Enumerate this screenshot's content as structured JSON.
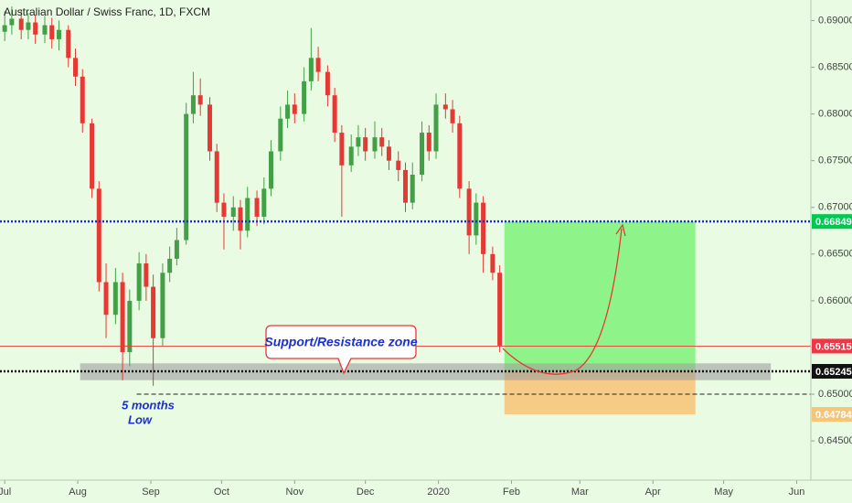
{
  "chart_data": {
    "type": "candlestick",
    "title": "Australian Dollar / Swiss Franc, 1D, FXCM",
    "up_color": "#43a047",
    "down_color": "#e53935",
    "background": "#e9fbe3",
    "xlim": [
      -2,
      342
    ],
    "ylim": [
      0.6408,
      0.6922
    ],
    "xticks": [
      {
        "value": 0,
        "label": "Jul"
      },
      {
        "value": 31,
        "label": "Aug"
      },
      {
        "value": 62,
        "label": "Sep"
      },
      {
        "value": 92,
        "label": "Oct"
      },
      {
        "value": 123,
        "label": "Nov"
      },
      {
        "value": 153,
        "label": "Dec"
      },
      {
        "value": 184,
        "label": "2020"
      },
      {
        "value": 215,
        "label": "Feb"
      },
      {
        "value": 244,
        "label": "Mar"
      },
      {
        "value": 275,
        "label": "Apr"
      },
      {
        "value": 305,
        "label": "May"
      },
      {
        "value": 336,
        "label": "Jun"
      }
    ],
    "yticks": [
      {
        "value": 0.645,
        "label": "0.64500"
      },
      {
        "value": 0.65,
        "label": "0.65000"
      },
      {
        "value": 0.655,
        "label": "0.65500"
      },
      {
        "value": 0.66,
        "label": "0.66000"
      },
      {
        "value": 0.665,
        "label": "0.66500"
      },
      {
        "value": 0.67,
        "label": "0.67000"
      },
      {
        "value": 0.675,
        "label": "0.67500"
      },
      {
        "value": 0.68,
        "label": "0.68000"
      },
      {
        "value": 0.685,
        "label": "0.68500"
      },
      {
        "value": 0.69,
        "label": "0.69000"
      }
    ],
    "x": [
      0,
      3,
      7,
      10,
      13,
      17,
      20,
      23,
      27,
      30,
      33,
      37,
      40,
      43,
      47,
      50,
      53,
      57,
      60,
      63,
      67,
      70,
      73,
      77,
      80,
      83,
      87,
      90,
      93,
      97,
      100,
      103,
      107,
      110,
      113,
      117,
      120,
      123,
      127,
      130,
      133,
      137,
      140,
      143,
      147,
      150,
      153,
      157,
      160,
      163,
      167,
      170,
      173,
      177,
      180,
      183,
      187,
      190,
      193,
      197,
      200,
      203,
      207,
      210
    ],
    "open": [
      0.6888,
      0.6895,
      0.6902,
      0.689,
      0.6898,
      0.6885,
      0.6895,
      0.688,
      0.689,
      0.686,
      0.684,
      0.679,
      0.672,
      0.662,
      0.6585,
      0.662,
      0.6545,
      0.66,
      0.664,
      0.6615,
      0.656,
      0.663,
      0.6645,
      0.6665,
      0.68,
      0.682,
      0.681,
      0.676,
      0.6705,
      0.669,
      0.67,
      0.6675,
      0.671,
      0.669,
      0.672,
      0.676,
      0.6795,
      0.681,
      0.68,
      0.6835,
      0.686,
      0.6845,
      0.682,
      0.678,
      0.6745,
      0.6765,
      0.6775,
      0.676,
      0.6775,
      0.6765,
      0.675,
      0.674,
      0.6705,
      0.6735,
      0.678,
      0.676,
      0.681,
      0.6805,
      0.679,
      0.672,
      0.667,
      0.6705,
      0.665,
      0.663
    ],
    "high": [
      0.691,
      0.6915,
      0.6912,
      0.6908,
      0.6906,
      0.6905,
      0.6903,
      0.69,
      0.6895,
      0.687,
      0.6848,
      0.6795,
      0.6728,
      0.664,
      0.6635,
      0.663,
      0.6612,
      0.6652,
      0.665,
      0.6628,
      0.664,
      0.6658,
      0.6678,
      0.6812,
      0.6845,
      0.6838,
      0.6818,
      0.6768,
      0.6715,
      0.6712,
      0.6708,
      0.6722,
      0.6718,
      0.6732,
      0.6772,
      0.6808,
      0.6825,
      0.6822,
      0.685,
      0.6892,
      0.6872,
      0.6852,
      0.6828,
      0.6788,
      0.6778,
      0.6788,
      0.6785,
      0.6792,
      0.6785,
      0.6772,
      0.676,
      0.6748,
      0.6748,
      0.6792,
      0.6788,
      0.6822,
      0.6822,
      0.6815,
      0.6798,
      0.6728,
      0.6715,
      0.6712,
      0.6658,
      0.6638
    ],
    "low": [
      0.6878,
      0.6885,
      0.688,
      0.688,
      0.6875,
      0.6876,
      0.687,
      0.6868,
      0.685,
      0.683,
      0.678,
      0.671,
      0.661,
      0.656,
      0.6575,
      0.6515,
      0.653,
      0.659,
      0.66,
      0.6509,
      0.6552,
      0.662,
      0.6638,
      0.666,
      0.679,
      0.6798,
      0.675,
      0.6695,
      0.6655,
      0.6675,
      0.6655,
      0.6668,
      0.668,
      0.6682,
      0.6712,
      0.675,
      0.6785,
      0.679,
      0.6792,
      0.6825,
      0.6835,
      0.6808,
      0.677,
      0.669,
      0.6738,
      0.6755,
      0.675,
      0.6752,
      0.6755,
      0.674,
      0.6728,
      0.6695,
      0.6698,
      0.6728,
      0.675,
      0.6752,
      0.6795,
      0.678,
      0.671,
      0.665,
      0.666,
      0.663,
      0.6622,
      0.6545
    ],
    "close": [
      0.6895,
      0.6902,
      0.689,
      0.6898,
      0.6885,
      0.6895,
      0.688,
      0.689,
      0.686,
      0.684,
      0.679,
      0.672,
      0.662,
      0.6585,
      0.662,
      0.6545,
      0.66,
      0.664,
      0.6615,
      0.656,
      0.663,
      0.6645,
      0.6665,
      0.68,
      0.682,
      0.681,
      0.676,
      0.6705,
      0.669,
      0.67,
      0.6675,
      0.671,
      0.669,
      0.672,
      0.676,
      0.6795,
      0.681,
      0.68,
      0.6835,
      0.686,
      0.6845,
      0.682,
      0.678,
      0.6745,
      0.6765,
      0.6775,
      0.676,
      0.6775,
      0.6765,
      0.675,
      0.674,
      0.6705,
      0.6735,
      0.678,
      0.676,
      0.681,
      0.6805,
      0.679,
      0.672,
      0.667,
      0.6705,
      0.665,
      0.663,
      0.6552
    ],
    "levels": [
      {
        "value": 0.66849,
        "line_color": "#1f2fd8",
        "tag_color": "#00c853",
        "style": "dotted"
      },
      {
        "value": 0.65515,
        "line_color": "#e53935",
        "tag_color": "#f23645",
        "style": "solid"
      },
      {
        "value": 0.65245,
        "line_color": "#111111",
        "tag_color": "#111111",
        "style": "dotted"
      }
    ],
    "dashed_level": {
      "value": 0.65,
      "from": 56,
      "color": "#222222"
    },
    "zone": {
      "x": [
        32,
        325
      ],
      "y": [
        0.6515,
        0.6533
      ],
      "color": "#9e9e9e"
    },
    "target_box": {
      "x": [
        212,
        293
      ],
      "y": [
        0.65245,
        0.66849
      ],
      "color": "#7ef27a"
    },
    "stop_box": {
      "x": [
        212,
        293
      ],
      "y": [
        0.64784,
        0.65245
      ],
      "color": "#f7c57a"
    },
    "callout": "Support/Resistance zone",
    "low_note": [
      "5 months",
      "Low"
    ]
  }
}
